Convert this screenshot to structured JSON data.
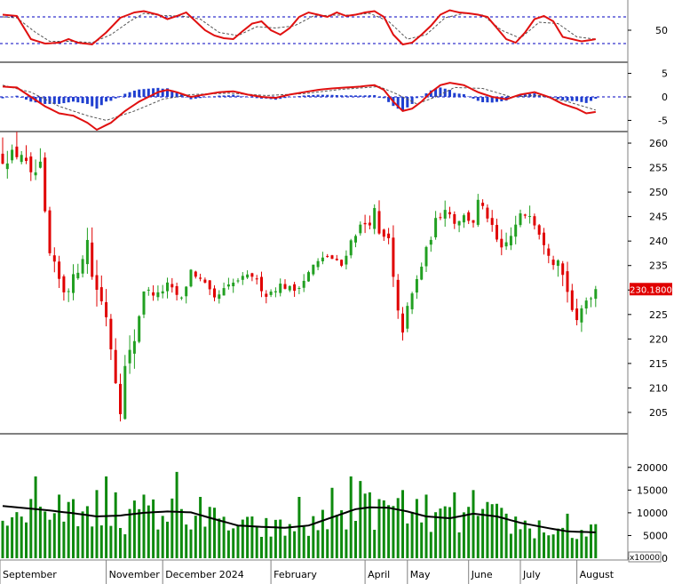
{
  "chart_data": {
    "type": "candlestick",
    "x_months": [
      "September",
      "November",
      "December 2024",
      "February",
      "April",
      "May",
      "June",
      "July",
      "August"
    ],
    "colors": {
      "up": "#22a022",
      "down": "#e00000",
      "volume": "#0e8a0e",
      "volume_ma": "#000000",
      "stoch": "#e01010",
      "stoch_signal": "#555555",
      "macd_line": "#e01010",
      "macd_hist": "#1f3fd0",
      "level_line": "#0000c0",
      "price_label_bg": "#e00000",
      "price_label_text": "#ffffff"
    },
    "price_panel": {
      "ylim": [
        201,
        262
      ],
      "yticks": [
        205,
        210,
        215,
        220,
        225,
        230,
        235,
        240,
        245,
        250,
        255,
        260
      ],
      "last_price_label": "230.1800",
      "last_price": 230.18,
      "close_keyframes": [
        [
          0,
          257
        ],
        [
          4,
          258
        ],
        [
          6,
          253
        ],
        [
          8,
          255
        ],
        [
          9,
          245
        ],
        [
          10,
          237
        ],
        [
          12,
          232
        ],
        [
          13,
          230
        ],
        [
          15,
          232
        ],
        [
          18,
          240
        ],
        [
          19,
          233
        ],
        [
          22,
          225
        ],
        [
          24,
          212
        ],
        [
          25,
          206
        ],
        [
          26,
          214
        ],
        [
          28,
          220
        ],
        [
          30,
          230
        ],
        [
          33,
          229
        ],
        [
          35,
          231
        ],
        [
          38,
          228
        ],
        [
          40,
          234
        ],
        [
          43,
          231
        ],
        [
          45,
          228
        ],
        [
          47,
          230
        ],
        [
          50,
          232
        ],
        [
          53,
          233
        ],
        [
          56,
          229
        ],
        [
          59,
          231
        ],
        [
          62,
          230
        ],
        [
          64,
          232
        ],
        [
          66,
          235
        ],
        [
          69,
          237
        ],
        [
          72,
          235
        ],
        [
          74,
          240
        ],
        [
          76,
          243
        ],
        [
          78,
          244
        ],
        [
          79,
          246
        ],
        [
          80,
          241
        ],
        [
          82,
          240
        ],
        [
          83,
          232
        ],
        [
          84,
          225
        ],
        [
          85,
          222
        ],
        [
          86,
          226
        ],
        [
          88,
          232
        ],
        [
          90,
          238
        ],
        [
          92,
          244
        ],
        [
          94,
          247
        ],
        [
          96,
          244
        ],
        [
          98,
          245
        ],
        [
          100,
          244
        ],
        [
          101,
          248
        ],
        [
          103,
          245
        ],
        [
          105,
          240
        ],
        [
          106,
          238
        ],
        [
          108,
          241
        ],
        [
          110,
          245
        ],
        [
          112,
          246
        ],
        [
          113,
          244
        ],
        [
          115,
          240
        ],
        [
          117,
          236
        ],
        [
          118,
          237
        ],
        [
          119,
          233
        ],
        [
          120,
          230
        ],
        [
          121,
          226
        ],
        [
          122,
          223
        ],
        [
          123,
          226
        ],
        [
          124,
          228
        ],
        [
          126,
          230
        ]
      ],
      "volatility": [
        [
          0,
          5
        ],
        [
          5,
          4
        ],
        [
          20,
          5
        ],
        [
          28,
          4.5
        ],
        [
          30,
          2.3
        ],
        [
          75,
          2
        ],
        [
          82,
          4
        ],
        [
          88,
          3
        ],
        [
          100,
          2.5
        ],
        [
          118,
          3.5
        ],
        [
          126,
          2.5
        ]
      ]
    },
    "volume_panel": {
      "ylim": [
        0,
        27000
      ],
      "yticks": [
        0,
        5000,
        10000,
        15000,
        20000
      ],
      "multiplier_label": "x10000",
      "ma_keyframes": [
        [
          0,
          11500
        ],
        [
          5,
          11000
        ],
        [
          10,
          10500
        ],
        [
          15,
          9900
        ],
        [
          20,
          9200
        ],
        [
          25,
          9400
        ],
        [
          30,
          10000
        ],
        [
          35,
          10300
        ],
        [
          40,
          10100
        ],
        [
          45,
          8600
        ],
        [
          50,
          7200
        ],
        [
          55,
          6900
        ],
        [
          60,
          6700
        ],
        [
          65,
          7200
        ],
        [
          70,
          9000
        ],
        [
          75,
          10800
        ],
        [
          78,
          11200
        ],
        [
          82,
          11100
        ],
        [
          86,
          10300
        ],
        [
          90,
          9200
        ],
        [
          95,
          8800
        ],
        [
          100,
          9800
        ],
        [
          105,
          9200
        ],
        [
          110,
          7800
        ],
        [
          115,
          6800
        ],
        [
          120,
          5900
        ],
        [
          126,
          5700
        ]
      ],
      "spikes": [
        [
          7,
          18000
        ],
        [
          12,
          14000
        ],
        [
          20,
          15000
        ],
        [
          22,
          18000
        ],
        [
          24,
          14500
        ],
        [
          30,
          14000
        ],
        [
          37,
          19000
        ],
        [
          42,
          13500
        ],
        [
          63,
          13500
        ],
        [
          70,
          15500
        ],
        [
          74,
          18000
        ],
        [
          76,
          17000
        ],
        [
          85,
          15000
        ],
        [
          90,
          14000
        ],
        [
          96,
          14500
        ],
        [
          100,
          15000
        ],
        [
          120,
          9800
        ]
      ]
    },
    "stochastic_panel": {
      "ylim": [
        -18,
        118
      ],
      "yticks": [
        50
      ],
      "levels": [
        20,
        80
      ],
      "k_keyframes": [
        [
          0,
          85
        ],
        [
          3,
          82
        ],
        [
          6,
          30
        ],
        [
          9,
          20
        ],
        [
          12,
          22
        ],
        [
          14,
          30
        ],
        [
          16,
          22
        ],
        [
          19,
          18
        ],
        [
          22,
          45
        ],
        [
          25,
          78
        ],
        [
          28,
          90
        ],
        [
          30,
          93
        ],
        [
          33,
          85
        ],
        [
          35,
          75
        ],
        [
          37,
          82
        ],
        [
          39,
          90
        ],
        [
          41,
          70
        ],
        [
          43,
          50
        ],
        [
          45,
          38
        ],
        [
          47,
          32
        ],
        [
          49,
          30
        ],
        [
          51,
          48
        ],
        [
          53,
          65
        ],
        [
          55,
          70
        ],
        [
          57,
          50
        ],
        [
          59,
          40
        ],
        [
          61,
          55
        ],
        [
          63,
          80
        ],
        [
          65,
          90
        ],
        [
          67,
          85
        ],
        [
          69,
          80
        ],
        [
          71,
          90
        ],
        [
          73,
          82
        ],
        [
          75,
          85
        ],
        [
          77,
          90
        ],
        [
          79,
          93
        ],
        [
          81,
          80
        ],
        [
          83,
          40
        ],
        [
          85,
          18
        ],
        [
          87,
          22
        ],
        [
          89,
          40
        ],
        [
          91,
          60
        ],
        [
          93,
          85
        ],
        [
          95,
          95
        ],
        [
          97,
          90
        ],
        [
          99,
          88
        ],
        [
          101,
          85
        ],
        [
          103,
          80
        ],
        [
          105,
          55
        ],
        [
          107,
          30
        ],
        [
          109,
          22
        ],
        [
          111,
          45
        ],
        [
          113,
          75
        ],
        [
          115,
          82
        ],
        [
          117,
          70
        ],
        [
          119,
          35
        ],
        [
          121,
          30
        ],
        [
          123,
          25
        ],
        [
          125,
          28
        ],
        [
          126,
          30
        ]
      ],
      "d_keyframes": [
        [
          0,
          80
        ],
        [
          3,
          78
        ],
        [
          7,
          45
        ],
        [
          10,
          25
        ],
        [
          15,
          25
        ],
        [
          19,
          22
        ],
        [
          23,
          40
        ],
        [
          27,
          70
        ],
        [
          30,
          88
        ],
        [
          34,
          83
        ],
        [
          38,
          82
        ],
        [
          42,
          75
        ],
        [
          46,
          45
        ],
        [
          50,
          38
        ],
        [
          54,
          58
        ],
        [
          58,
          55
        ],
        [
          62,
          60
        ],
        [
          66,
          82
        ],
        [
          70,
          84
        ],
        [
          74,
          84
        ],
        [
          78,
          88
        ],
        [
          82,
          70
        ],
        [
          86,
          30
        ],
        [
          90,
          40
        ],
        [
          94,
          78
        ],
        [
          98,
          88
        ],
        [
          102,
          84
        ],
        [
          106,
          50
        ],
        [
          110,
          32
        ],
        [
          114,
          68
        ],
        [
          118,
          65
        ],
        [
          122,
          35
        ],
        [
          126,
          30
        ]
      ]
    },
    "macd_panel": {
      "ylim": [
        -7,
        7
      ],
      "yticks": [
        -5,
        0,
        5
      ],
      "macd_keyframes": [
        [
          0,
          2.2
        ],
        [
          3,
          2
        ],
        [
          6,
          0
        ],
        [
          9,
          -2
        ],
        [
          12,
          -3.5
        ],
        [
          15,
          -4
        ],
        [
          18,
          -5.5
        ],
        [
          20,
          -7
        ],
        [
          23,
          -5.5
        ],
        [
          26,
          -3
        ],
        [
          29,
          -1
        ],
        [
          31,
          0
        ],
        [
          33,
          1
        ],
        [
          35,
          1.5
        ],
        [
          37,
          1
        ],
        [
          40,
          0
        ],
        [
          43,
          0.5
        ],
        [
          46,
          1
        ],
        [
          49,
          1.2
        ],
        [
          52,
          0.5
        ],
        [
          55,
          0
        ],
        [
          58,
          -0.2
        ],
        [
          61,
          0.5
        ],
        [
          64,
          1
        ],
        [
          67,
          1.5
        ],
        [
          70,
          1.8
        ],
        [
          73,
          2
        ],
        [
          76,
          2.2
        ],
        [
          79,
          2.5
        ],
        [
          81,
          1.5
        ],
        [
          83,
          -1
        ],
        [
          85,
          -3
        ],
        [
          87,
          -2.5
        ],
        [
          89,
          -1
        ],
        [
          91,
          1
        ],
        [
          93,
          2.5
        ],
        [
          95,
          3
        ],
        [
          98,
          2.5
        ],
        [
          101,
          1
        ],
        [
          104,
          0
        ],
        [
          107,
          -0.5
        ],
        [
          110,
          0.5
        ],
        [
          113,
          1
        ],
        [
          116,
          0
        ],
        [
          119,
          -1.5
        ],
        [
          122,
          -2.5
        ],
        [
          124,
          -3.5
        ],
        [
          126,
          -3.2
        ]
      ],
      "signal_keyframes": [
        [
          0,
          2.5
        ],
        [
          6,
          1
        ],
        [
          12,
          -2
        ],
        [
          18,
          -4
        ],
        [
          22,
          -5
        ],
        [
          28,
          -3
        ],
        [
          34,
          -0.5
        ],
        [
          40,
          0.5
        ],
        [
          48,
          0.8
        ],
        [
          56,
          0.3
        ],
        [
          64,
          0.7
        ],
        [
          72,
          1.6
        ],
        [
          80,
          2.2
        ],
        [
          84,
          0.5
        ],
        [
          88,
          -1.5
        ],
        [
          92,
          0
        ],
        [
          96,
          2
        ],
        [
          102,
          1.8
        ],
        [
          108,
          0
        ],
        [
          114,
          0.3
        ],
        [
          120,
          -1
        ],
        [
          126,
          -2.8
        ]
      ]
    }
  }
}
